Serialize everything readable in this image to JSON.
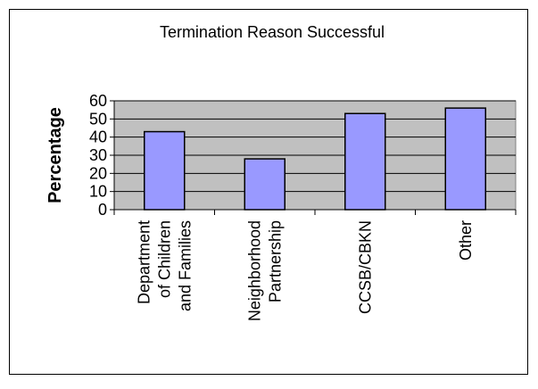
{
  "chart_data": {
    "type": "bar",
    "title": "Termination Reason Successful",
    "y_label": "Percentage",
    "categories": [
      "Department of Children and Families",
      "Neighborhood Partnership",
      "CCSB/CBKN",
      "Other"
    ],
    "values": [
      43,
      28,
      53,
      56
    ],
    "color": "#9999ff",
    "ylim": [
      0,
      60
    ],
    "yticks": [
      0,
      10,
      20,
      30,
      40,
      50,
      60
    ],
    "grid": true
  }
}
